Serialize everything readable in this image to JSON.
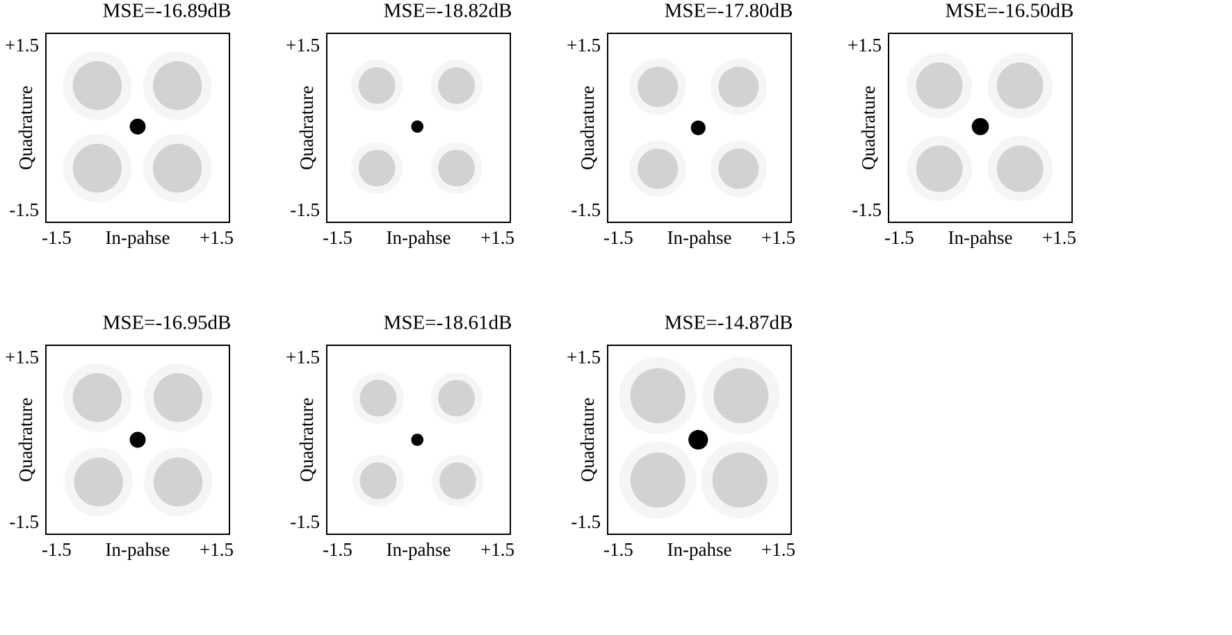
{
  "chart_data": [
    {
      "type": "scatter",
      "title": "MSE=-16.89dB",
      "xlabel": "In-pahse",
      "ylabel": "Quadrature",
      "xlim": [
        -1.5,
        1.5
      ],
      "ylim": [
        -1.5,
        1.5
      ],
      "xticks": [
        -1.5,
        {
          "value": 1.5,
          "label": "+1.5"
        }
      ],
      "yticks": [
        -1.5,
        {
          "value": 1.5,
          "label": "+1.5"
        }
      ],
      "series": [
        {
          "color": "#d2d2d2",
          "x": [
            -0.66,
            0.65,
            -0.66,
            0.65
          ],
          "values": [
            0.67,
            0.67,
            -0.64,
            -0.64
          ],
          "sizes": [
            0.4,
            0.4,
            0.4,
            0.4
          ]
        },
        {
          "color": "#000000",
          "x": [
            0
          ],
          "values": [
            0.02
          ],
          "sizes": [
            0.13
          ]
        }
      ]
    },
    {
      "type": "scatter",
      "title": "MSE=-18.82dB",
      "xlabel": "In-pahse",
      "ylabel": "Quadrature",
      "xlim": [
        -1.5,
        1.5
      ],
      "ylim": [
        -1.5,
        1.5
      ],
      "xticks": [
        -1.5,
        {
          "value": 1.5,
          "label": "+1.5"
        }
      ],
      "yticks": [
        -1.5,
        {
          "value": 1.5,
          "label": "+1.5"
        }
      ],
      "series": [
        {
          "color": "#d2d2d2",
          "x": [
            -0.68,
            0.62,
            -0.68,
            0.62
          ],
          "values": [
            0.67,
            0.67,
            -0.64,
            -0.64
          ],
          "sizes": [
            0.3,
            0.3,
            0.3,
            0.3
          ]
        },
        {
          "color": "#000000",
          "x": [
            -0.02
          ],
          "values": [
            0.02
          ],
          "sizes": [
            0.1
          ]
        }
      ]
    },
    {
      "type": "scatter",
      "title": "MSE=-17.80dB",
      "xlabel": "In-pahse",
      "ylabel": "Quadrature",
      "xlim": [
        -1.5,
        1.5
      ],
      "ylim": [
        -1.5,
        1.5
      ],
      "xticks": [
        -1.5,
        {
          "value": 1.5,
          "label": "+1.5"
        }
      ],
      "yticks": [
        -1.5,
        {
          "value": 1.5,
          "label": "+1.5"
        }
      ],
      "series": [
        {
          "color": "#d2d2d2",
          "x": [
            -0.68,
            0.64,
            -0.68,
            0.64
          ],
          "values": [
            0.65,
            0.65,
            -0.65,
            -0.65
          ],
          "sizes": [
            0.33,
            0.33,
            0.33,
            0.33
          ]
        },
        {
          "color": "#000000",
          "x": [
            -0.02
          ],
          "values": [
            0
          ],
          "sizes": [
            0.12
          ]
        }
      ]
    },
    {
      "type": "scatter",
      "title": "MSE=-16.50dB",
      "xlabel": "In-pahse",
      "ylabel": "Quadrature",
      "xlim": [
        -1.5,
        1.5
      ],
      "ylim": [
        -1.5,
        1.5
      ],
      "xticks": [
        -1.5,
        {
          "value": 1.5,
          "label": "+1.5"
        }
      ],
      "yticks": [
        -1.5,
        {
          "value": 1.5,
          "label": "+1.5"
        }
      ],
      "series": [
        {
          "color": "#d2d2d2",
          "x": [
            -0.67,
            0.65,
            -0.67,
            0.65
          ],
          "values": [
            0.67,
            0.67,
            -0.65,
            -0.65
          ],
          "sizes": [
            0.38,
            0.38,
            0.38,
            0.38
          ]
        },
        {
          "color": "#000000",
          "x": [
            0
          ],
          "values": [
            0.02
          ],
          "sizes": [
            0.14
          ]
        }
      ]
    },
    {
      "type": "scatter",
      "title": "MSE=-16.95dB",
      "xlabel": "In-pahse",
      "ylabel": "Quadrature",
      "xlim": [
        -1.5,
        1.5
      ],
      "ylim": [
        -1.5,
        1.5
      ],
      "xticks": [
        -1.5,
        {
          "value": 1.5,
          "label": "+1.5"
        }
      ],
      "yticks": [
        -1.5,
        {
          "value": 1.5,
          "label": "+1.5"
        }
      ],
      "series": [
        {
          "color": "#d2d2d2",
          "x": [
            -0.66,
            0.66,
            -0.64,
            0.66
          ],
          "values": [
            0.67,
            0.67,
            -0.67,
            -0.67
          ],
          "sizes": [
            0.4,
            0.4,
            0.4,
            0.4
          ]
        },
        {
          "color": "#000000",
          "x": [
            0
          ],
          "values": [
            0
          ],
          "sizes": [
            0.13
          ]
        }
      ]
    },
    {
      "type": "scatter",
      "title": "MSE=-18.61dB",
      "xlabel": "In-pahse",
      "ylabel": "Quadrature",
      "xlim": [
        -1.5,
        1.5
      ],
      "ylim": [
        -1.5,
        1.5
      ],
      "xticks": [
        -1.5,
        {
          "value": 1.5,
          "label": "+1.5"
        }
      ],
      "yticks": [
        -1.5,
        {
          "value": 1.5,
          "label": "+1.5"
        }
      ],
      "series": [
        {
          "color": "#d2d2d2",
          "x": [
            -0.66,
            0.62,
            -0.66,
            0.64
          ],
          "values": [
            0.66,
            0.66,
            -0.65,
            -0.65
          ],
          "sizes": [
            0.3,
            0.3,
            0.3,
            0.3
          ]
        },
        {
          "color": "#000000",
          "x": [
            -0.02
          ],
          "values": [
            0
          ],
          "sizes": [
            0.1
          ]
        }
      ]
    },
    {
      "type": "scatter",
      "title": "MSE=-14.87dB",
      "xlabel": "In-pahse",
      "ylabel": "Quadrature",
      "xlim": [
        -1.5,
        1.5
      ],
      "ylim": [
        -1.5,
        1.5
      ],
      "xticks": [
        -1.5,
        {
          "value": 1.5,
          "label": "+1.5"
        }
      ],
      "yticks": [
        -1.5,
        {
          "value": 1.5,
          "label": "+1.5"
        }
      ],
      "series": [
        {
          "color": "#d2d2d2",
          "x": [
            -0.68,
            0.68,
            -0.68,
            0.66
          ],
          "values": [
            0.7,
            0.7,
            -0.64,
            -0.64
          ],
          "sizes": [
            0.45,
            0.45,
            0.45,
            0.45
          ]
        },
        {
          "color": "#000000",
          "x": [
            -0.02
          ],
          "values": [
            0
          ],
          "sizes": [
            0.16
          ]
        }
      ]
    }
  ]
}
